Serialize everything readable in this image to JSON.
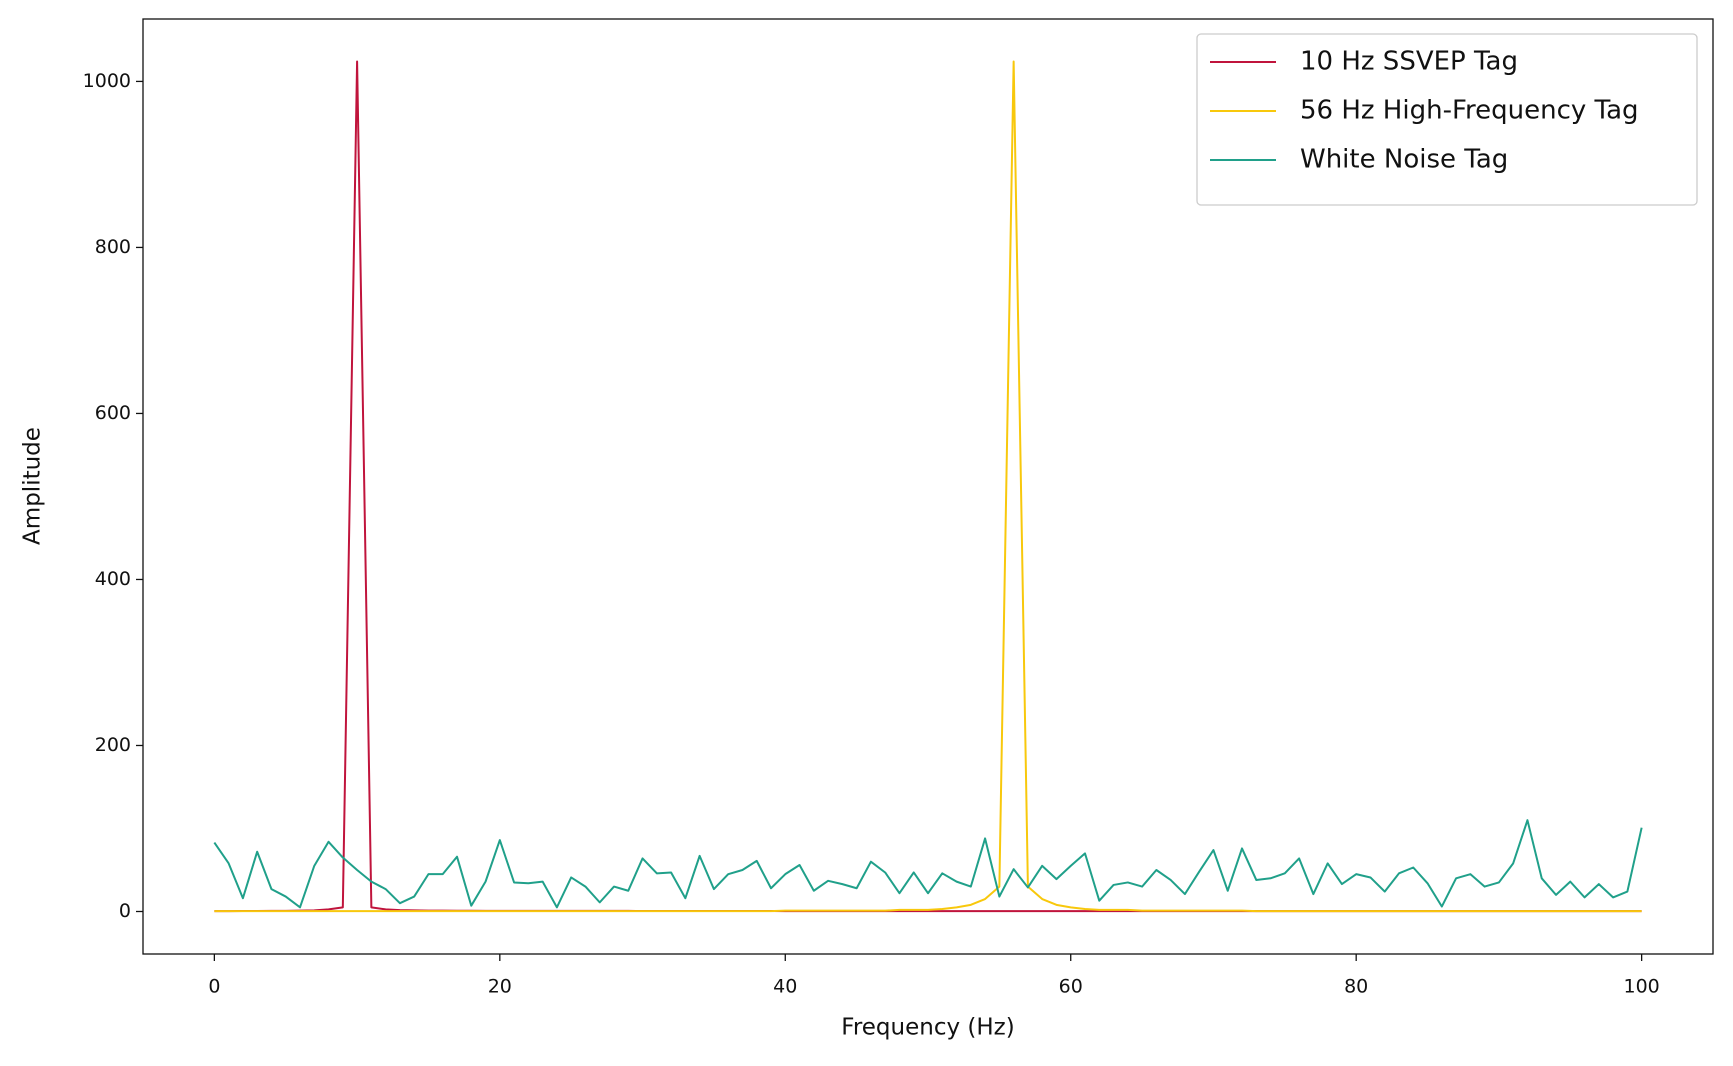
{
  "chart_data": {
    "type": "line",
    "xlabel": "Frequency (Hz)",
    "ylabel": "Amplitude",
    "x": [
      0,
      1,
      2,
      3,
      4,
      5,
      6,
      7,
      8,
      9,
      10,
      11,
      12,
      13,
      14,
      15,
      16,
      17,
      18,
      19,
      20,
      21,
      22,
      23,
      24,
      25,
      26,
      27,
      28,
      29,
      30,
      31,
      32,
      33,
      34,
      35,
      36,
      37,
      38,
      39,
      40,
      41,
      42,
      43,
      44,
      45,
      46,
      47,
      48,
      49,
      50,
      51,
      52,
      53,
      54,
      55,
      56,
      57,
      58,
      59,
      60,
      61,
      62,
      63,
      64,
      65,
      66,
      67,
      68,
      69,
      70,
      71,
      72,
      73,
      74,
      75,
      76,
      77,
      78,
      79,
      80,
      81,
      82,
      83,
      84,
      85,
      86,
      87,
      88,
      89,
      90,
      91,
      92,
      93,
      94,
      95,
      96,
      97,
      98,
      99,
      100
    ],
    "series": [
      {
        "name": "10 Hz SSVEP Tag",
        "color": "#c0143c",
        "values": [
          0.5,
          0.5,
          0.6,
          0.6,
          0.7,
          0.8,
          1,
          1.3,
          2.5,
          5,
          1024,
          5,
          2.5,
          1.7,
          1.3,
          1.1,
          1,
          0.9,
          0.9,
          0.8,
          0.7,
          0.7,
          0.7,
          0.7,
          0.7,
          0.7,
          0.7,
          0.7,
          0.7,
          0.7,
          0.6,
          0.6,
          0.6,
          0.6,
          0.6,
          0.6,
          0.6,
          0.6,
          0.6,
          0.6,
          0.5,
          0.5,
          0.5,
          0.5,
          0.5,
          0.5,
          0.5,
          0.5,
          0.5,
          0.5,
          0.5,
          0.5,
          0.5,
          0.5,
          0.5,
          0.5,
          0.5,
          0.5,
          0.5,
          0.5,
          0.5,
          0.5,
          0.5,
          0.5,
          0.5,
          0.5,
          0.5,
          0.5,
          0.5,
          0.5,
          0.5,
          0.5,
          0.5,
          0.5,
          0.5,
          0.5,
          0.5,
          0.5,
          0.5,
          0.5,
          0.5,
          0.5,
          0.5,
          0.5,
          0.5,
          0.5,
          0.5,
          0.5,
          0.5,
          0.5,
          0.5,
          0.5,
          0.5,
          0.5,
          0.5,
          0.5,
          0.5,
          0.5,
          0.5,
          0.5,
          0.5
        ]
      },
      {
        "name": "56 Hz High-Frequency Tag",
        "color": "#f8c80c",
        "values": [
          0.5,
          0.5,
          0.5,
          0.5,
          0.5,
          0.5,
          0.5,
          0.5,
          0.5,
          0.5,
          0.5,
          0.5,
          0.5,
          0.5,
          0.5,
          0.5,
          0.5,
          0.5,
          0.5,
          0.5,
          0.5,
          0.5,
          0.5,
          0.5,
          0.5,
          0.5,
          0.5,
          0.5,
          0.5,
          0.5,
          0.5,
          0.5,
          0.5,
          0.5,
          0.5,
          0.5,
          0.5,
          0.5,
          0.5,
          0.5,
          1,
          1,
          1,
          1,
          1,
          1,
          1,
          1,
          2,
          2,
          2,
          3,
          5,
          8,
          15,
          30,
          1024,
          30,
          15,
          8,
          5,
          3,
          2,
          2,
          2,
          1,
          1,
          1,
          1,
          1,
          1,
          1,
          1,
          0.5,
          0.5,
          0.5,
          0.5,
          0.5,
          0.5,
          0.5,
          0.5,
          0.5,
          0.5,
          0.5,
          0.5,
          0.5,
          0.5,
          0.5,
          0.5,
          0.5,
          0.5,
          0.5,
          0.5,
          0.5,
          0.5,
          0.5,
          0.5,
          0.5,
          0.5,
          0.5,
          0.5
        ]
      },
      {
        "name": "White Noise Tag",
        "color": "#20a08a",
        "values": [
          83,
          58,
          16,
          72,
          27,
          18,
          5,
          55,
          84,
          65,
          50,
          36,
          27,
          10,
          18,
          45,
          45,
          66,
          7,
          36,
          86,
          35,
          34,
          36,
          5,
          41,
          30,
          11,
          30,
          25,
          64,
          46,
          47,
          16,
          67,
          27,
          45,
          50,
          61,
          28,
          45,
          56,
          25,
          37,
          33,
          28,
          60,
          47,
          22,
          47,
          22,
          46,
          36,
          30,
          88,
          18,
          51,
          29,
          55,
          39,
          55,
          70,
          13,
          32,
          35,
          30,
          50,
          38,
          21,
          48,
          74,
          25,
          76,
          38,
          40,
          46,
          64,
          21,
          58,
          33,
          45,
          41,
          24,
          46,
          53,
          34,
          6,
          40,
          45,
          30,
          35,
          58,
          110,
          40,
          20,
          36,
          17,
          33,
          17,
          24,
          101
        ]
      }
    ],
    "xlim": [
      -5,
      105
    ],
    "ylim": [
      -51.2,
      1075.2
    ],
    "xticks": [
      0,
      20,
      40,
      60,
      80,
      100
    ],
    "yticks": [
      0,
      200,
      400,
      600,
      800,
      1000
    ],
    "legend": "upper right"
  }
}
